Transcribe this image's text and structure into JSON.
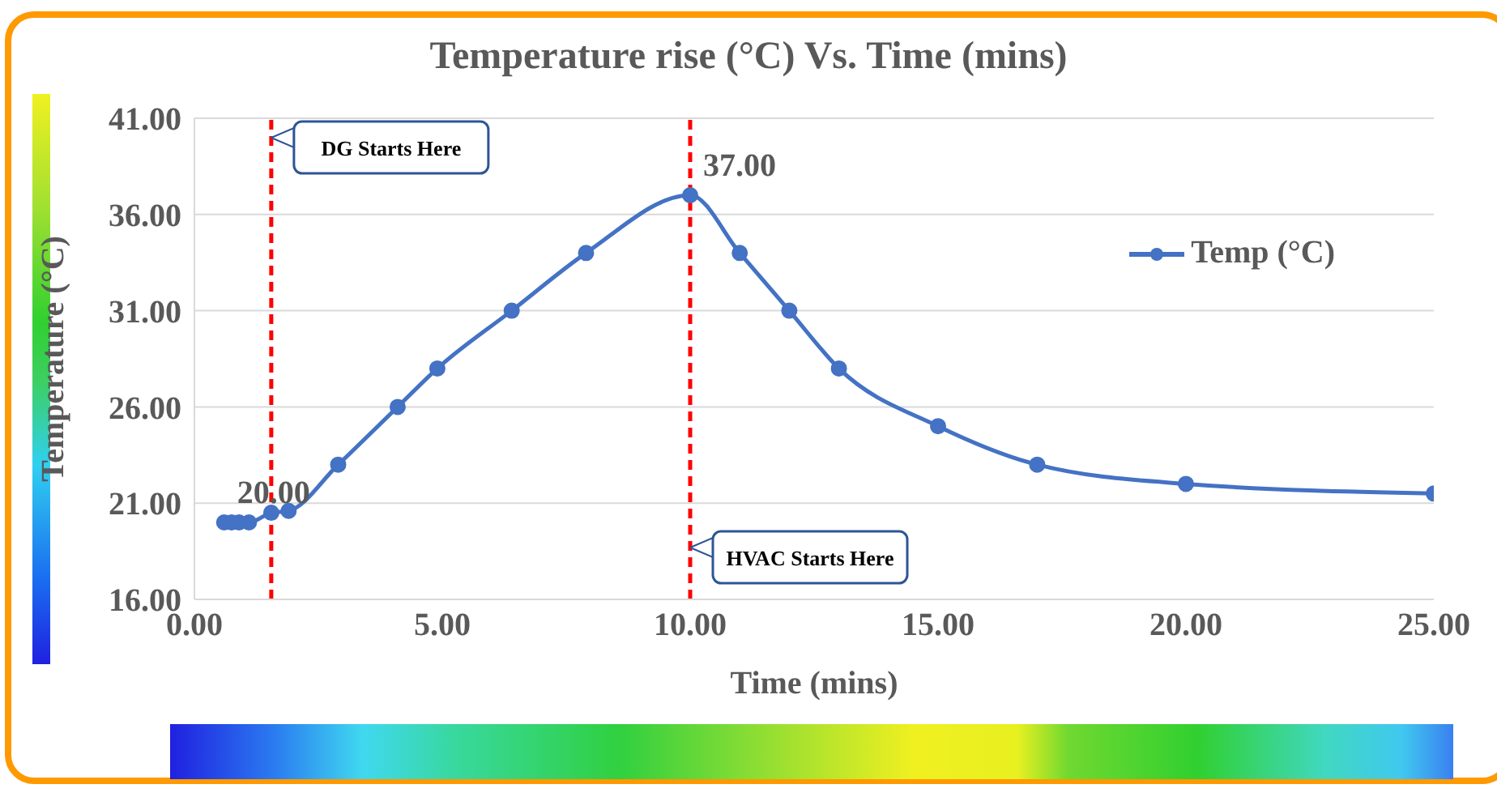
{
  "chart_data": {
    "type": "line",
    "title": "Temperature rise (°C) Vs. Time (mins)",
    "xlabel": "Time (mins)",
    "ylabel": "Temperature (°C)",
    "x": [
      0.6,
      0.75,
      0.9,
      1.1,
      1.55,
      1.9,
      2.9,
      4.1,
      4.9,
      6.4,
      7.9,
      10,
      11,
      12,
      13,
      15,
      17,
      20,
      25
    ],
    "series": [
      {
        "name": "Temp (°C)",
        "color": "#4472c4",
        "values": [
          20,
          20,
          20,
          20,
          20.5,
          20.6,
          23,
          26,
          28,
          31,
          34,
          37,
          34,
          31,
          28,
          25,
          23,
          22,
          21.5
        ],
        "value_labels": [
          "20.00",
          null,
          null,
          null,
          null,
          null,
          null,
          null,
          null,
          null,
          null,
          "37.00",
          null,
          null,
          null,
          null,
          null,
          null,
          null
        ]
      }
    ],
    "xlim": [
      0,
      25
    ],
    "xticks": [
      {
        "value": 0,
        "label": "0.00"
      },
      {
        "value": 5,
        "label": "5.00"
      },
      {
        "value": 10,
        "label": "10.00"
      },
      {
        "value": 15,
        "label": "15.00"
      },
      {
        "value": 20,
        "label": "20.00"
      },
      {
        "value": 25,
        "label": "25.00"
      }
    ],
    "ylim": [
      16,
      41
    ],
    "yticks": [
      {
        "value": 16,
        "label": "16.00"
      },
      {
        "value": 21,
        "label": "21.00"
      },
      {
        "value": 26,
        "label": "26.00"
      },
      {
        "value": 31,
        "label": "31.00"
      },
      {
        "value": 36,
        "label": "36.00"
      },
      {
        "value": 41,
        "label": "41.00"
      }
    ],
    "ref_lines": [
      {
        "axis": "x",
        "value": 1.55,
        "label": "DG Starts Here",
        "color": "#ff0000",
        "line_style": "dashed"
      },
      {
        "axis": "x",
        "value": 10,
        "label": "HVAC Starts Here",
        "color": "#ff0000",
        "line_style": "dashed"
      }
    ],
    "grid": "y",
    "legend": "top right",
    "marker": "circle",
    "line_style": "solid"
  }
}
